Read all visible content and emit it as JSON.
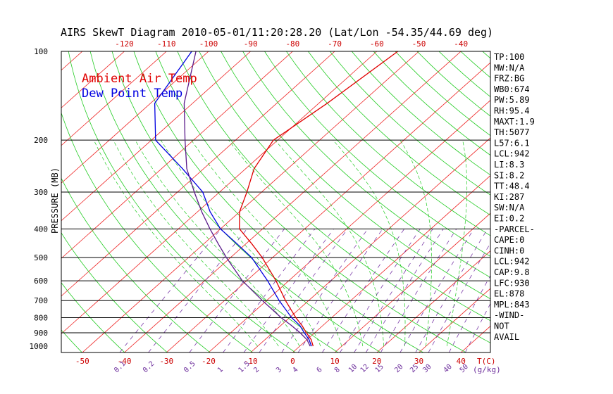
{
  "title": "AIRS SkewT Diagram 2010-05-01/11:20:28.20 (Lat/Lon -54.35/44.69 deg)",
  "legend": {
    "ambient_label": "Ambient Air Temp",
    "dewpoint_label": "Dew Point Temp"
  },
  "colors": {
    "ambient": "#e00000",
    "dewpoint": "#0000e0",
    "profile_dark": "#5a1a8a",
    "isotherm": "#ee2222",
    "dry_adiabat": "#22cc22",
    "moist_adiabat": "#22cc22",
    "mixing_ratio": "#7a3aa8",
    "isobar": "#000000",
    "frame": "#000000",
    "text": "#000000",
    "tick_red": "#cc0000",
    "tick_purple": "#6a2a9a"
  },
  "chart_data": {
    "type": "line",
    "title": "AIRS SkewT Diagram 2010-05-01/11:20:28.20 (Lat/Lon -54.35/44.69 deg)",
    "ylabel": "PRESSURE (MB)",
    "y_scale": "log",
    "ylim_mb": [
      1050,
      100
    ],
    "pressure_ticks": [
      100,
      200,
      300,
      400,
      500,
      600,
      700,
      800,
      900,
      1000
    ],
    "isobar_lines": [
      200,
      300,
      400,
      500,
      600,
      700,
      800,
      900
    ],
    "temperature_axis": {
      "label": "T(C)",
      "bottom_ticks": [
        -50,
        -40,
        -30,
        -20,
        -10,
        0,
        10,
        20,
        30,
        40
      ],
      "top_ticks": [
        -120,
        -110,
        -100,
        -90,
        -80,
        -70,
        -60,
        -50,
        -40
      ],
      "xlim_at_1050mb": [
        -55,
        47
      ]
    },
    "mixing_ratio_axis": {
      "label": "(g/kg)",
      "ticks": [
        "0.1",
        "0.2",
        "0.5",
        "1",
        "1.5",
        "2",
        "3",
        "4",
        "6",
        "8",
        "10",
        "12",
        "15",
        "20",
        "25",
        "30",
        "40",
        "50"
      ]
    },
    "isotherms_c": [
      -160,
      -150,
      -140,
      -130,
      -120,
      -110,
      -100,
      -90,
      -80,
      -70,
      -60,
      -50,
      -40,
      -30,
      -20,
      -10,
      0,
      10,
      20,
      30,
      40,
      50
    ],
    "dry_adiabats_k": [
      220,
      230,
      240,
      250,
      260,
      270,
      280,
      290,
      300,
      310,
      320,
      330,
      340,
      350,
      360,
      370,
      380,
      390,
      400,
      410,
      420,
      430,
      440,
      450,
      460,
      470,
      480,
      490,
      500
    ],
    "moist_adiabats_c": [
      -10,
      -5,
      0,
      5,
      10,
      15,
      20,
      25,
      30,
      35
    ],
    "mixing_ratio_lines_gkg": [
      0.1,
      0.2,
      0.5,
      1,
      1.5,
      2,
      3,
      4,
      6,
      8,
      10,
      12,
      15,
      20,
      25,
      30,
      40,
      50
    ],
    "series": [
      {
        "name": "Ambient Air Temp",
        "pressure_mb": [
          1000,
          950,
          900,
          850,
          800,
          700,
          600,
          500,
          450,
          400,
          350,
          300,
          250,
          200,
          150,
          100
        ],
        "temperature_c": [
          3.2,
          1.0,
          -2.0,
          -5.0,
          -8.5,
          -15.5,
          -23.0,
          -32.5,
          -38.5,
          -45.5,
          -50.0,
          -53.5,
          -58.0,
          -61.0,
          -58.0,
          -55.0
        ]
      },
      {
        "name": "Dew Point Temp",
        "pressure_mb": [
          1000,
          950,
          900,
          850,
          800,
          700,
          600,
          500,
          450,
          400,
          350,
          300,
          250,
          200,
          150,
          100
        ],
        "temperature_c": [
          2.8,
          0.5,
          -2.5,
          -5.5,
          -9.5,
          -17.0,
          -25.0,
          -35.0,
          -42.0,
          -50.0,
          -57.0,
          -64.0,
          -75.0,
          -89.0,
          -99.0,
          -104.0
        ]
      },
      {
        "pressure_mb": [
          1000,
          950,
          900,
          850,
          800,
          700,
          600,
          500,
          450,
          400,
          350,
          300,
          250,
          200,
          150,
          100
        ],
        "temperature_c": [
          2.5,
          0.0,
          -3.5,
          -7.5,
          -12.0,
          -21.0,
          -31.0,
          -41.0,
          -46.5,
          -52.5,
          -59.0,
          -66.0,
          -74.0,
          -82.0,
          -92.0,
          -103.0
        ]
      }
    ]
  },
  "stats": [
    "TP:100",
    "MW:N/A",
    "FRZ:BG",
    "WB0:674",
    "PW:5.89",
    "RH:95.4",
    "MAXT:1.9",
    "TH:5077",
    "L57:6.1",
    "LCL:942",
    "LI:8.3",
    "SI:8.2",
    "TT:48.4",
    "KI:287",
    "SW:N/A",
    "EI:0.2",
    "-PARCEL-",
    "CAPE:0",
    "CINH:0",
    "LCL:942",
    "CAP:9.8",
    "LFC:930",
    "EL:878",
    "MPL:843",
    "-WIND-",
    "NOT",
    "AVAIL"
  ]
}
